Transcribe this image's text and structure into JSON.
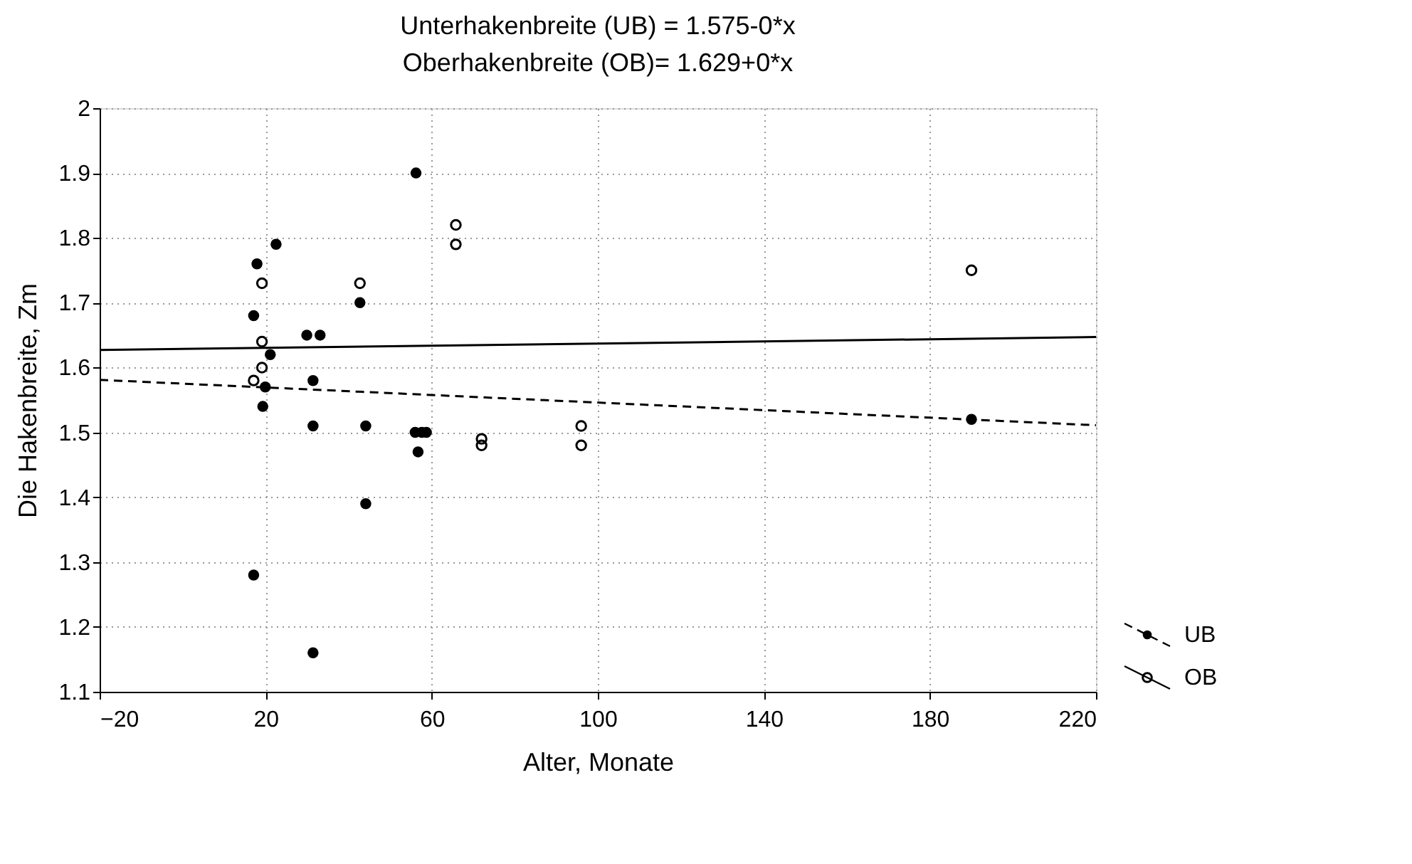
{
  "chart_data": {
    "type": "scatter",
    "title": "Unterhakenbreite (UB) = 1.575-0*x",
    "subtitle": "Oberhakenbreite (OB)= 1.629+0*x",
    "xlabel": "Alter, Monate",
    "ylabel": "Die Hakenbreite, Zm",
    "xlim": [
      -20,
      220
    ],
    "xticks": [
      -20,
      20,
      60,
      100,
      140,
      180,
      220
    ],
    "ylim": [
      1.1,
      2
    ],
    "yticks": [
      1.1,
      1.2,
      1.3,
      1.4,
      1.5,
      1.6,
      1.7,
      1.8,
      1.9,
      2
    ],
    "grid": true,
    "legend": "bottom right",
    "marker": "circle",
    "series": [
      {
        "name": "UB",
        "color": "#000000",
        "x": [
          56.2,
          22.5,
          17.9,
          17.1,
          42.7,
          29.9,
          33.1,
          21.1,
          31.4,
          19.9,
          19.3,
          31.4,
          44.1,
          56.0,
          57.6,
          58.7,
          56.7,
          44.1,
          17.1,
          31.4,
          190
        ],
        "values": [
          1.9,
          1.79,
          1.76,
          1.68,
          1.7,
          1.65,
          1.65,
          1.62,
          1.58,
          1.57,
          1.54,
          1.51,
          1.51,
          1.5,
          1.5,
          1.5,
          1.47,
          1.39,
          1.28,
          1.16,
          1.52
        ]
      },
      {
        "name": "OB",
        "color": "#000000",
        "x": [
          19.1,
          19.1,
          19.1,
          17.1,
          42.7,
          65.8,
          65.8,
          72.0,
          72.0,
          96,
          96,
          190
        ],
        "values": [
          1.73,
          1.64,
          1.6,
          1.58,
          1.73,
          1.82,
          1.79,
          1.49,
          1.48,
          1.51,
          1.48,
          1.75
        ]
      },
      {
        "type": "line",
        "color": "#000000",
        "line_style": "dashed",
        "marker": "none",
        "x": [
          -20,
          220
        ],
        "values": [
          1.581,
          1.511
        ]
      },
      {
        "type": "line",
        "color": "#000000",
        "line_style": "solid",
        "marker": "none",
        "x": [
          -20,
          220
        ],
        "values": [
          1.627,
          1.647
        ]
      }
    ]
  }
}
